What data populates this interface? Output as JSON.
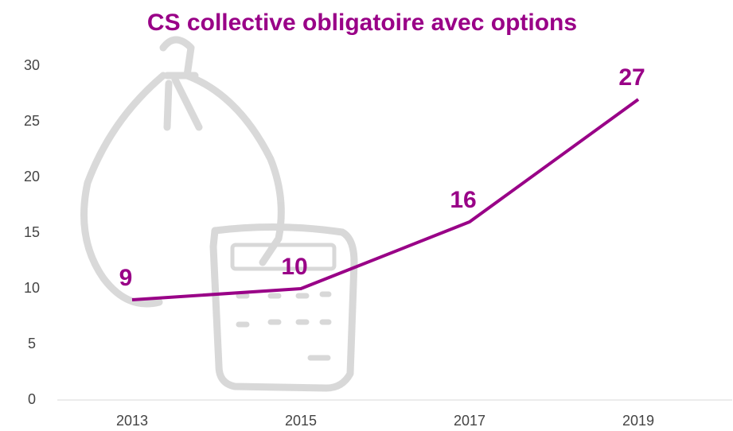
{
  "chart_data": {
    "type": "line",
    "title": "CS collective obligatoire avec options",
    "categories": [
      "2013",
      "2015",
      "2017",
      "2019"
    ],
    "values": [
      9,
      10,
      16,
      27
    ],
    "color": "#990087",
    "ylim": [
      0,
      30
    ],
    "yticks": [
      0,
      5,
      10,
      15,
      20,
      25,
      30
    ],
    "grid": false
  }
}
